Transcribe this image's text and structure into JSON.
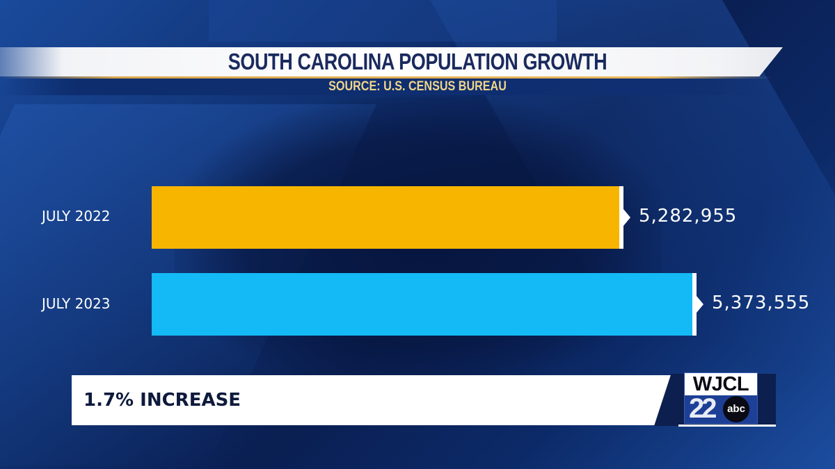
{
  "header": {
    "title": "SOUTH CAROLINA POPULATION GROWTH",
    "subtitle": "SOURCE: U.S. CENSUS BUREAU"
  },
  "rows": [
    {
      "label": "JULY 2022",
      "value": 5282955,
      "value_text": "5,282,955",
      "color": "#F7B500"
    },
    {
      "label": "JULY 2023",
      "value": 5373555,
      "value_text": "5,373,555",
      "color": "#14BAF5"
    }
  ],
  "footer": {
    "text": "1.7% INCREASE"
  },
  "logo": {
    "station": "WJCL",
    "channel": "22",
    "network": "abc"
  },
  "colors": {
    "background": "#0F2F6E",
    "title_text": "#1A2A5E",
    "subtitle_text": "#F0D58A",
    "accent_line": "#E9B75A"
  },
  "chart_data": {
    "type": "bar",
    "orientation": "horizontal",
    "title": "SOUTH CAROLINA POPULATION GROWTH",
    "subtitle": "SOURCE: U.S. CENSUS BUREAU",
    "categories": [
      "JULY 2022",
      "JULY 2023"
    ],
    "values": [
      5282955,
      5373555
    ],
    "colors": [
      "#F7B500",
      "#14BAF5"
    ],
    "annotations": [
      "1.7% INCREASE"
    ],
    "xlabel": "",
    "ylabel": "",
    "grid": false,
    "legend": "none"
  }
}
